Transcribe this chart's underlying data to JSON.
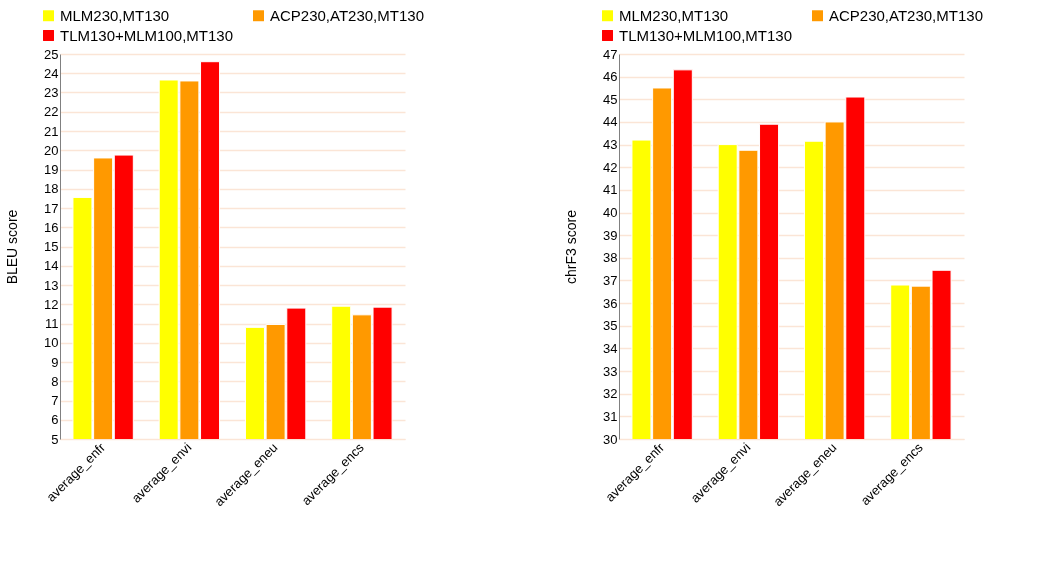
{
  "chart_data": [
    {
      "type": "bar",
      "ylabel": "BLEU score",
      "categories": [
        "average_enfr",
        "average_envi",
        "average_eneu",
        "average_encs"
      ],
      "series": [
        {
          "name": "MLM230,MT130",
          "color": "#ffff00",
          "values": [
            17.55,
            23.65,
            10.8,
            11.9
          ]
        },
        {
          "name": "ACP230,AT230,MT130",
          "color": "#ff9900",
          "values": [
            19.6,
            23.6,
            10.95,
            11.45
          ]
        },
        {
          "name": "TLM130+MLM100,MT130",
          "color": "#ff0000",
          "values": [
            19.75,
            24.6,
            11.8,
            11.85
          ]
        }
      ],
      "ylim": [
        5,
        25
      ],
      "yticks": [
        5,
        6,
        7,
        8,
        9,
        10,
        11,
        12,
        13,
        14,
        15,
        16,
        17,
        18,
        19,
        20,
        21,
        22,
        23,
        24,
        25
      ],
      "grid": "y",
      "legend": "top"
    },
    {
      "type": "bar",
      "ylabel": "chrF3 score",
      "categories": [
        "average_enfr",
        "average_envi",
        "average_eneu",
        "average_encs"
      ],
      "series": [
        {
          "name": "MLM230,MT130",
          "color": "#ffff00",
          "values": [
            43.2,
            43.0,
            43.15,
            36.8
          ]
        },
        {
          "name": "ACP230,AT230,MT130",
          "color": "#ff9900",
          "values": [
            45.5,
            42.75,
            44.0,
            36.75
          ]
        },
        {
          "name": "TLM130+MLM100,MT130",
          "color": "#ff0000",
          "values": [
            46.3,
            43.9,
            45.1,
            37.45
          ]
        }
      ],
      "ylim": [
        30,
        47
      ],
      "yticks": [
        30,
        31,
        32,
        33,
        34,
        35,
        36,
        37,
        38,
        39,
        40,
        41,
        42,
        43,
        44,
        45,
        46,
        47
      ],
      "grid": "y",
      "legend": "top"
    }
  ]
}
